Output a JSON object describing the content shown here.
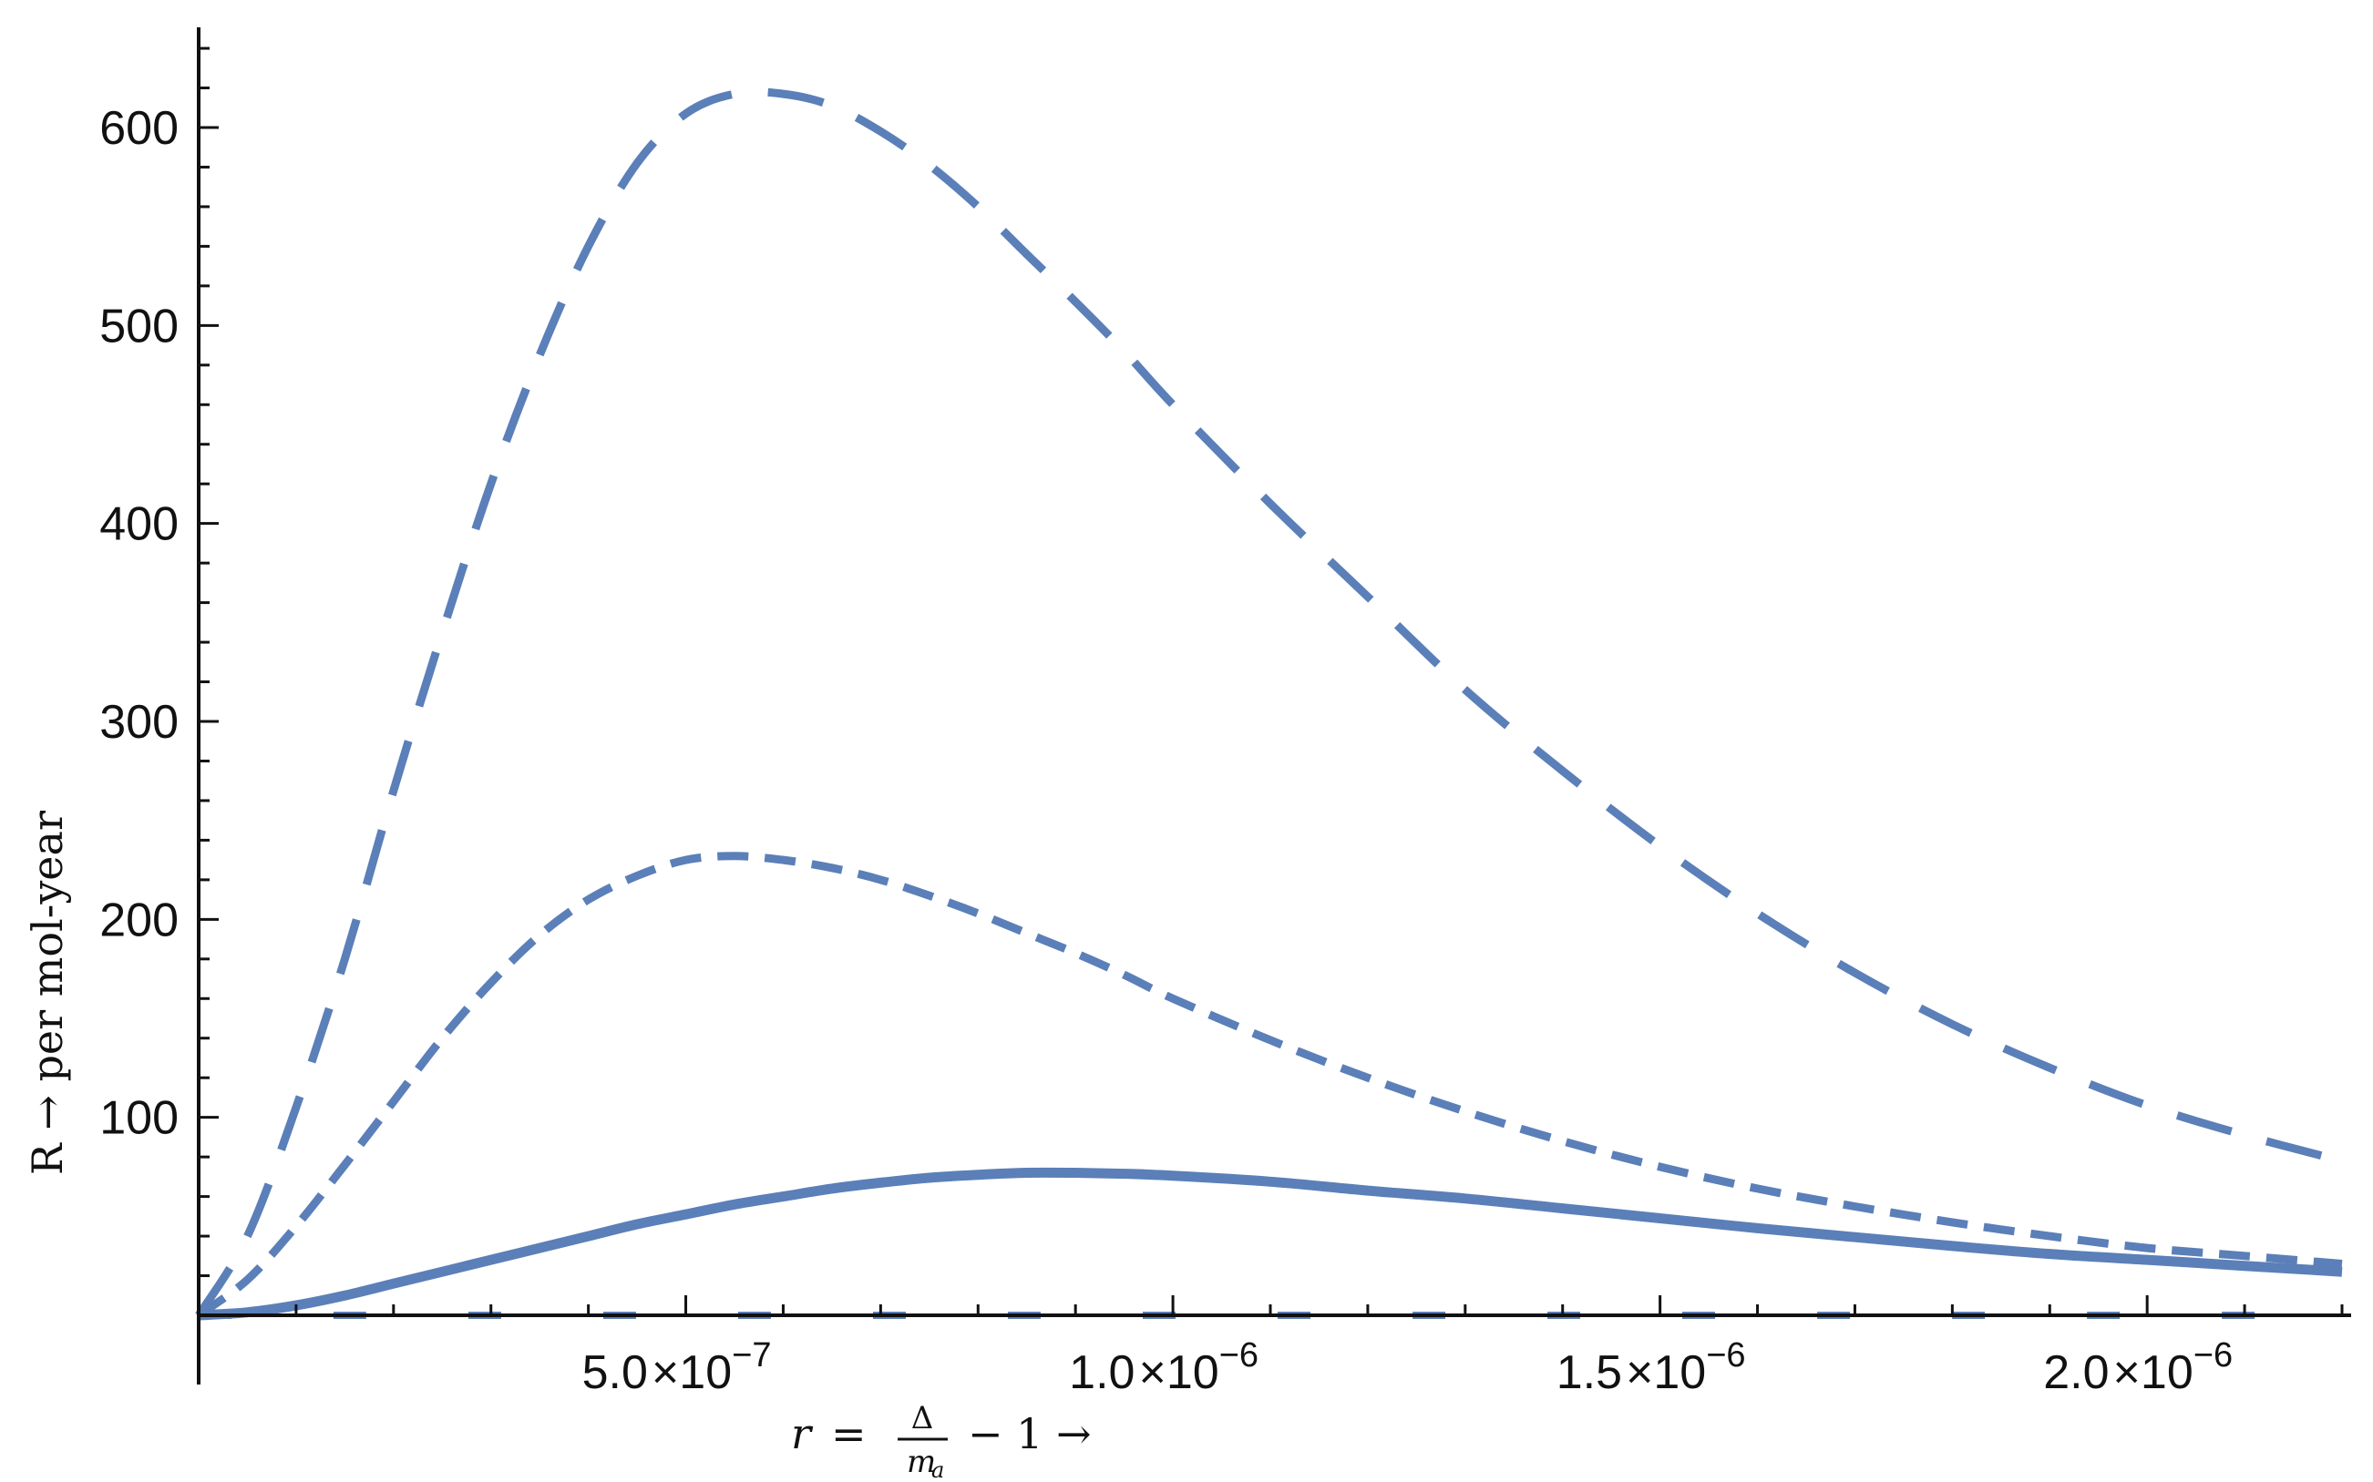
{
  "chart_data": {
    "type": "line",
    "title": "",
    "xlabel_parts": {
      "lhs": "r",
      "eq": "=",
      "num": "Δ",
      "den": "m",
      "den_sub": "a",
      "tail": "− 1 →"
    },
    "ylabel": "R → per mol-year",
    "xlim": [
      0,
      2.2e-06
    ],
    "ylim": [
      0,
      640
    ],
    "x_ticks": [
      {
        "value": 5e-07,
        "mantissa": "5.0",
        "exp": "−7"
      },
      {
        "value": 1e-06,
        "mantissa": "1.0",
        "exp": "−6"
      },
      {
        "value": 1.5e-06,
        "mantissa": "1.5",
        "exp": "−6"
      },
      {
        "value": 2e-06,
        "mantissa": "2.0",
        "exp": "−6"
      }
    ],
    "x_times": "×10",
    "y_ticks": [
      {
        "value": 100,
        "label": "100"
      },
      {
        "value": 200,
        "label": "200"
      },
      {
        "value": 300,
        "label": "300"
      },
      {
        "value": 400,
        "label": "400"
      },
      {
        "value": 500,
        "label": "500"
      },
      {
        "value": 600,
        "label": "600"
      }
    ],
    "grid": false,
    "legend": "none",
    "color": "#5b7fb8",
    "series": [
      {
        "style": "long-dash",
        "x": [
          0,
          5e-08,
          1e-07,
          1.5e-07,
          2e-07,
          2.5e-07,
          3e-07,
          3.5e-07,
          4e-07,
          4.5e-07,
          5e-07,
          5.5e-07,
          6e-07,
          6.5e-07,
          7e-07,
          7.5e-07,
          8e-07,
          8.5e-07,
          9e-07,
          9.5e-07,
          1e-06,
          1.1e-06,
          1.2e-06,
          1.3e-06,
          1.4e-06,
          1.5e-06,
          1.6e-06,
          1.7e-06,
          1.8e-06,
          1.9e-06,
          2e-06,
          2.1e-06,
          2.2e-06
        ],
        "y": [
          0,
          40,
          105,
          180,
          265,
          345,
          420,
          485,
          540,
          582,
          607,
          617,
          617,
          611,
          598,
          581,
          560,
          536,
          512,
          487,
          460,
          410,
          363,
          316,
          275,
          237,
          203,
          173,
          147,
          125,
          106,
          91,
          78
        ]
      },
      {
        "style": "short-dash",
        "x": [
          0,
          5e-08,
          1e-07,
          1.5e-07,
          2e-07,
          2.5e-07,
          3e-07,
          3.5e-07,
          4e-07,
          4.5e-07,
          5e-07,
          5.5e-07,
          6e-07,
          6.5e-07,
          7e-07,
          7.5e-07,
          8e-07,
          8.5e-07,
          9e-07,
          9.5e-07,
          1e-06,
          1.1e-06,
          1.2e-06,
          1.3e-06,
          1.4e-06,
          1.5e-06,
          1.6e-06,
          1.7e-06,
          1.8e-06,
          1.9e-06,
          2e-06,
          2.1e-06,
          2.2e-06
        ],
        "y": [
          0,
          18,
          45,
          76,
          108,
          140,
          168,
          192,
          210,
          222,
          230,
          232,
          230,
          226,
          220,
          212,
          203,
          193,
          183,
          172,
          160,
          139,
          120,
          103,
          88,
          75,
          64,
          55,
          47,
          40,
          34,
          30,
          26
        ]
      },
      {
        "style": "solid",
        "x": [
          0,
          5e-08,
          1e-07,
          1.5e-07,
          2e-07,
          2.5e-07,
          3e-07,
          3.5e-07,
          4e-07,
          4.5e-07,
          5e-07,
          5.5e-07,
          6e-07,
          6.5e-07,
          7e-07,
          7.5e-07,
          8e-07,
          8.5e-07,
          9e-07,
          9.5e-07,
          1e-06,
          1.1e-06,
          1.2e-06,
          1.3e-06,
          1.4e-06,
          1.5e-06,
          1.6e-06,
          1.7e-06,
          1.8e-06,
          1.9e-06,
          2e-06,
          2.1e-06,
          2.2e-06
        ],
        "y": [
          0,
          1.5,
          5,
          10,
          16,
          22,
          28,
          34,
          40,
          46,
          51,
          56,
          60,
          64,
          67,
          69.5,
          71,
          72,
          72,
          71.5,
          70.5,
          67.5,
          63,
          59,
          54,
          49,
          44,
          39.5,
          35,
          31,
          28,
          25,
          22
        ]
      },
      {
        "style": "dashed-baseline",
        "x": [
          0,
          2.2e-06
        ],
        "y": [
          0,
          0
        ]
      }
    ]
  }
}
